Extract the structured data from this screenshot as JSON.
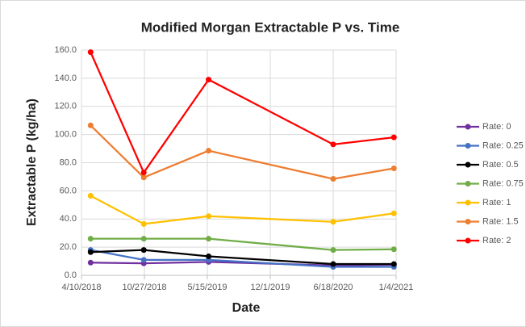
{
  "chart_data": {
    "type": "line",
    "title": "Modified Morgan Extractable  P vs. Time",
    "x_label": "Date",
    "y_label": "Extractable  P (kg/ha)",
    "x": [
      "5/9/2018",
      "10/25/2018",
      "5/19/2019",
      "6/18/2020",
      "12/28/2020"
    ],
    "xlim": [
      "4/10/2018",
      "1/4/2021"
    ],
    "xticks": [
      "4/10/2018",
      "10/27/2018",
      "5/15/2019",
      "12/1/2019",
      "6/18/2020",
      "1/4/2021"
    ],
    "ylim": [
      0,
      160
    ],
    "yticks": [
      {
        "value": 0,
        "label": "0.0"
      },
      {
        "value": 20,
        "label": "20.0"
      },
      {
        "value": 40,
        "label": "40.0"
      },
      {
        "value": 60,
        "label": "60.0"
      },
      {
        "value": 80,
        "label": "80.0"
      },
      {
        "value": 100,
        "label": "100.0"
      },
      {
        "value": 120,
        "label": "120.0"
      },
      {
        "value": 140,
        "label": "140.0"
      },
      {
        "value": 160,
        "label": "160.0"
      }
    ],
    "grid": true,
    "legend": "right",
    "series": [
      {
        "name": "Rate: 0",
        "color": "#7030a0",
        "values": [
          9,
          8.5,
          9.5,
          7,
          7.5
        ]
      },
      {
        "name": "Rate: 0.25",
        "color": "#4472c4",
        "values": [
          18,
          11,
          11,
          6,
          6
        ]
      },
      {
        "name": "Rate: 0.5",
        "color": "#000000",
        "values": [
          16.5,
          18,
          13.5,
          8,
          8
        ]
      },
      {
        "name": "Rate: 0.75",
        "color": "#70ad47",
        "values": [
          26,
          26,
          26,
          18,
          18.5
        ]
      },
      {
        "name": "Rate: 1",
        "color": "#ffc000",
        "values": [
          56.5,
          36.5,
          42,
          38,
          44
        ]
      },
      {
        "name": "Rate: 1.5",
        "color": "#ed7d31",
        "values": [
          106.5,
          69.5,
          88.5,
          68.5,
          76
        ]
      },
      {
        "name": "Rate: 2",
        "color": "#ff0000",
        "values": [
          158.5,
          73,
          139,
          93,
          98
        ]
      }
    ]
  }
}
